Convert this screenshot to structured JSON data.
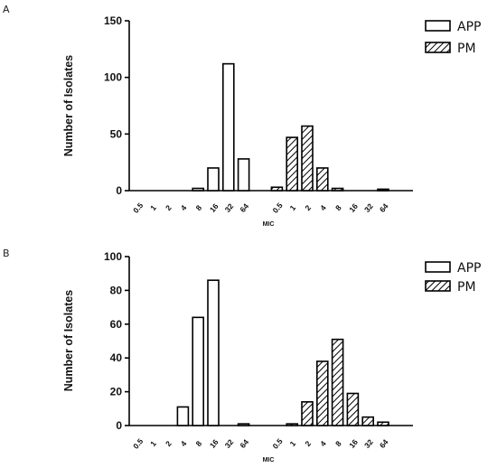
{
  "chart_data": [
    {
      "type": "bar",
      "panel": "A",
      "categories": [
        "0.5",
        "1",
        "2",
        "4",
        "8",
        "16",
        "32",
        "64",
        "0.5",
        "1",
        "2",
        "4",
        "8",
        "16",
        "32",
        "64"
      ],
      "series": [
        {
          "name": "APP",
          "pattern": "open",
          "values": [
            0,
            0,
            0,
            0,
            2,
            20,
            112,
            28,
            null,
            null,
            null,
            null,
            null,
            null,
            null,
            null
          ]
        },
        {
          "name": "PM",
          "pattern": "hatched",
          "values": [
            null,
            null,
            null,
            null,
            null,
            null,
            null,
            null,
            3,
            47,
            57,
            20,
            2,
            0,
            0,
            1
          ]
        }
      ],
      "xlabel": "MIC",
      "ylabel": "Number of Isolates",
      "ylim": [
        0,
        150
      ],
      "yticks": [
        0,
        50,
        100,
        150
      ],
      "legend": "top-right",
      "grid": false
    },
    {
      "type": "bar",
      "panel": "B",
      "categories": [
        "0.5",
        "1",
        "2",
        "4",
        "8",
        "16",
        "32",
        "64",
        "0.5",
        "1",
        "2",
        "4",
        "8",
        "16",
        "32",
        "64"
      ],
      "series": [
        {
          "name": "APP",
          "pattern": "open",
          "values": [
            0,
            0,
            0,
            11,
            64,
            86,
            0,
            1,
            null,
            null,
            null,
            null,
            null,
            null,
            null,
            null
          ]
        },
        {
          "name": "PM",
          "pattern": "hatched",
          "values": [
            null,
            null,
            null,
            null,
            null,
            null,
            null,
            null,
            0,
            1,
            14,
            38,
            51,
            19,
            5,
            2
          ]
        }
      ],
      "xlabel": "MIC",
      "ylabel": "Number of Isolates",
      "ylim": [
        0,
        100
      ],
      "yticks": [
        0,
        20,
        40,
        60,
        80,
        100
      ],
      "legend": "top-right",
      "grid": false
    }
  ]
}
